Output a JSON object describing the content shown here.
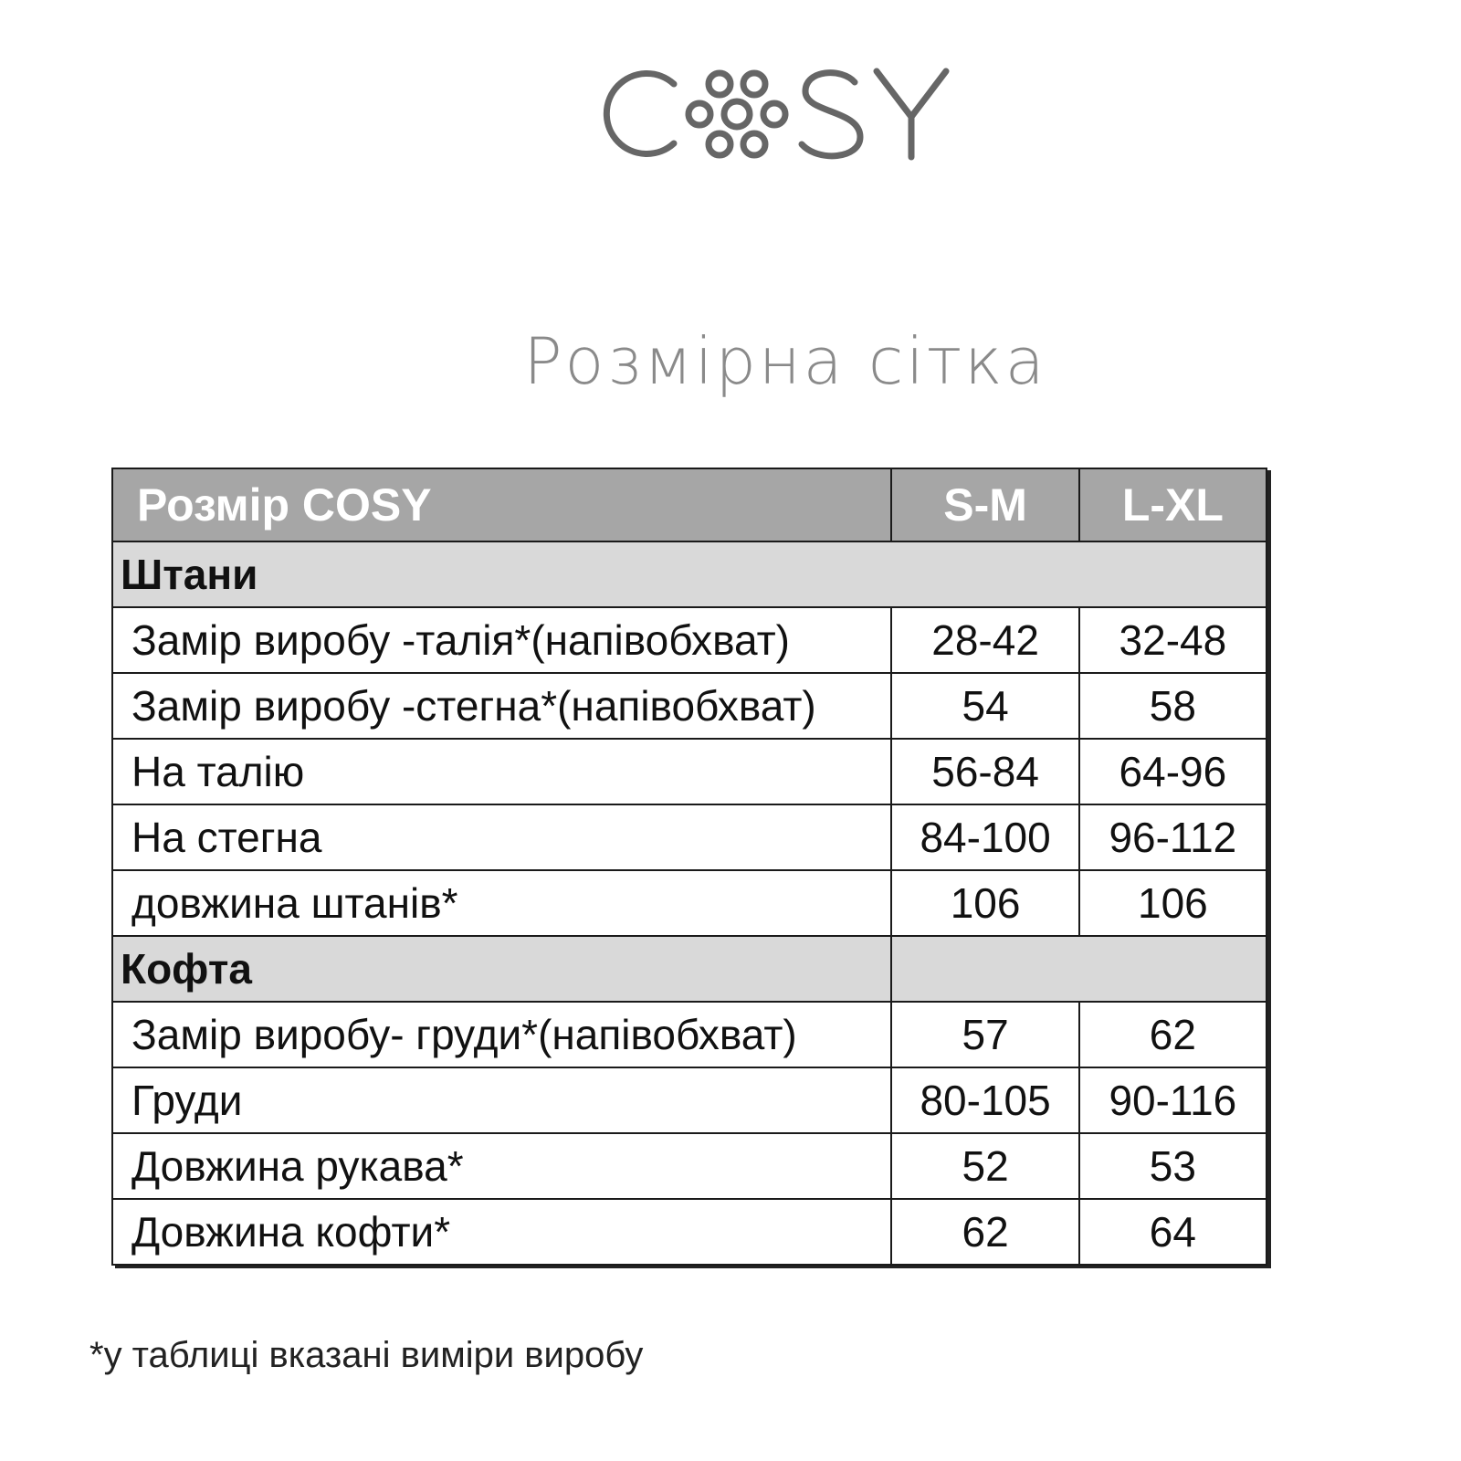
{
  "logo": {
    "text": "COSY",
    "color": "#666666"
  },
  "title": "Розмірна сітка",
  "table": {
    "header": [
      "Розмір COSY",
      "S-M",
      "L-XL"
    ],
    "sections": [
      {
        "name": "Штани",
        "rows": [
          {
            "label": "Замір виробу -талія*(напівобхват)",
            "sm": "28-42",
            "lxl": "32-48"
          },
          {
            "label": "Замір виробу -стегна*(напівобхват)",
            "sm": "54",
            "lxl": "58"
          },
          {
            "label": "На талію",
            "sm": "56-84",
            "lxl": "64-96"
          },
          {
            "label": "На стегна",
            "sm": "84-100",
            "lxl": "96-112"
          },
          {
            "label": "довжина штанів*",
            "sm": "106",
            "lxl": "106"
          }
        ]
      },
      {
        "name": "Кофта",
        "rows": [
          {
            "label": "Замір виробу- груди*(напівобхват)",
            "sm": "57",
            "lxl": "62"
          },
          {
            "label": "Груди",
            "sm": "80-105",
            "lxl": "90-116"
          },
          {
            "label": "Довжина рукава*",
            "sm": "52",
            "lxl": "53"
          },
          {
            "label": "Довжина кофти*",
            "sm": "62",
            "lxl": "64"
          }
        ]
      }
    ]
  },
  "footnote": "*у таблиці вказані виміри виробу"
}
